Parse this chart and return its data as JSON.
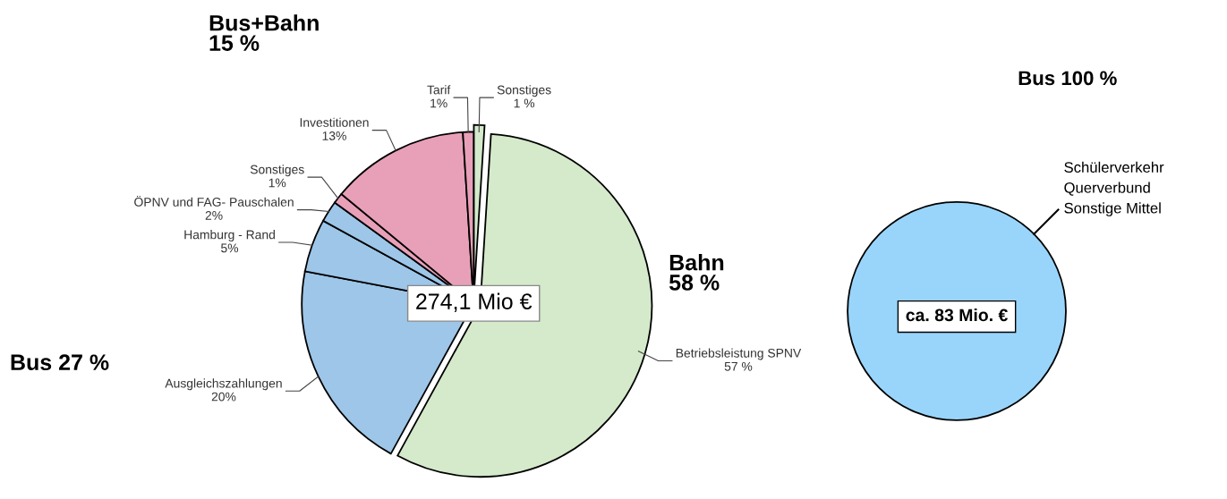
{
  "chart_data": [
    {
      "type": "pie",
      "categories": [
        "Sonstiges",
        "Betriebsleistung SPNV",
        "Ausgleichszahlungen",
        "Hamburg - Rand",
        "ÖPNV und FAG- Pauschalen",
        "Sonstiges",
        "Investitionen",
        "Tarif"
      ],
      "values": [
        1,
        57,
        20,
        5,
        2,
        1,
        13,
        1
      ],
      "value_labels": [
        "1 %",
        "57 %",
        "20%",
        "5%",
        "2%",
        "1%",
        "13%",
        "1%"
      ],
      "colors": [
        "#d4eacb",
        "#d4eacb",
        "#9dc6e8",
        "#9dc6e8",
        "#9dc6e8",
        "#e8a0b8",
        "#e8a0b8",
        "#e8a0b8"
      ],
      "annotations": [
        "274,1 Mio €",
        "Bus+Bahn\n15 %",
        "Bahn\n58 %",
        "Bus 27 %"
      ]
    },
    {
      "type": "pie",
      "title": "Bus 100 %",
      "categories": [
        "Schülerverkehr\nQuerverbund\nSonstige Mittel"
      ],
      "values": [
        100
      ],
      "colors": [
        "#99d5fb"
      ],
      "annotations": [
        "ca. 83 Mio. €"
      ]
    }
  ]
}
